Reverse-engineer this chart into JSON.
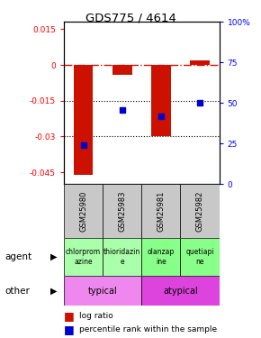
{
  "title": "GDS775 / 4614",
  "samples": [
    "GSM25980",
    "GSM25983",
    "GSM25981",
    "GSM25982"
  ],
  "log_ratios": [
    -0.046,
    -0.004,
    -0.03,
    0.002
  ],
  "percentile_ranks": [
    24,
    46,
    42,
    50
  ],
  "ylim_left": [
    -0.05,
    0.018
  ],
  "ylim_right": [
    0,
    100
  ],
  "yticks_left": [
    0.015,
    0,
    -0.015,
    -0.03,
    -0.045
  ],
  "ytick_labels_left": [
    "0.015",
    "0",
    "-0.015",
    "-0.03",
    "-0.045"
  ],
  "yticks_right": [
    100,
    75,
    50,
    25,
    0
  ],
  "ytick_labels_right": [
    "100%",
    "75",
    "50",
    "25",
    "0"
  ],
  "bar_color": "#cc1100",
  "dot_color": "#0000cc",
  "agent_labels": [
    "chlorprom\nazine",
    "thioridazin\ne",
    "olanzap\nine",
    "quetiapi\nne"
  ],
  "agent_colors": [
    "#aaffaa",
    "#aaffaa",
    "#88ff88",
    "#88ff88"
  ],
  "other_labels": [
    "typical",
    "atypical"
  ],
  "other_colors_left": "#ee88ee",
  "other_colors_right": "#dd44dd",
  "gray_color": "#c8c8c8"
}
